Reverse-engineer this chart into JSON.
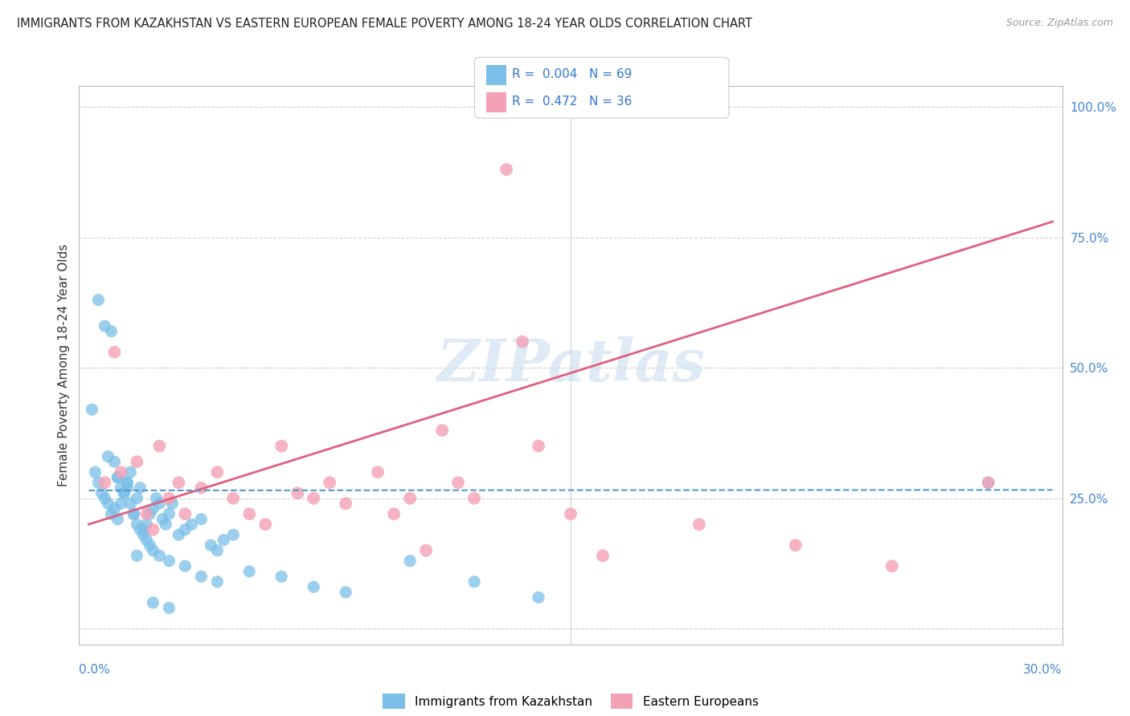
{
  "title": "IMMIGRANTS FROM KAZAKHSTAN VS EASTERN EUROPEAN FEMALE POVERTY AMONG 18-24 YEAR OLDS CORRELATION CHART",
  "source": "Source: ZipAtlas.com",
  "ylabel": "Female Poverty Among 18-24 Year Olds",
  "r_blue": 0.004,
  "n_blue": 69,
  "r_pink": 0.472,
  "n_pink": 36,
  "blue_color": "#7bbfe8",
  "pink_color": "#f4a0b5",
  "blue_line_color": "#5599cc",
  "pink_line_color": "#e06080",
  "watermark_color": "#c8dff0",
  "xlim": [
    0.0,
    0.3
  ],
  "ylim": [
    0.0,
    1.0
  ],
  "pink_line_y0": 0.2,
  "pink_line_y1": 0.78,
  "blue_line_y": 0.265,
  "blue_scatter_x": [
    0.003,
    0.005,
    0.007,
    0.008,
    0.009,
    0.01,
    0.011,
    0.012,
    0.013,
    0.014,
    0.015,
    0.016,
    0.017,
    0.018,
    0.019,
    0.02,
    0.021,
    0.022,
    0.023,
    0.024,
    0.025,
    0.026,
    0.028,
    0.03,
    0.032,
    0.035,
    0.038,
    0.04,
    0.042,
    0.045,
    0.002,
    0.003,
    0.004,
    0.005,
    0.006,
    0.007,
    0.008,
    0.009,
    0.01,
    0.011,
    0.012,
    0.013,
    0.014,
    0.015,
    0.016,
    0.017,
    0.018,
    0.019,
    0.02,
    0.022,
    0.025,
    0.03,
    0.035,
    0.04,
    0.05,
    0.06,
    0.07,
    0.08,
    0.1,
    0.12,
    0.14,
    0.006,
    0.009,
    0.012,
    0.015,
    0.02,
    0.025,
    0.28,
    0.001
  ],
  "blue_scatter_y": [
    0.63,
    0.58,
    0.57,
    0.23,
    0.21,
    0.24,
    0.26,
    0.28,
    0.3,
    0.22,
    0.25,
    0.27,
    0.19,
    0.2,
    0.22,
    0.23,
    0.25,
    0.24,
    0.21,
    0.2,
    0.22,
    0.24,
    0.18,
    0.19,
    0.2,
    0.21,
    0.16,
    0.15,
    0.17,
    0.18,
    0.3,
    0.28,
    0.26,
    0.25,
    0.24,
    0.22,
    0.32,
    0.29,
    0.27,
    0.26,
    0.28,
    0.24,
    0.22,
    0.2,
    0.19,
    0.18,
    0.17,
    0.16,
    0.15,
    0.14,
    0.13,
    0.12,
    0.1,
    0.09,
    0.11,
    0.1,
    0.08,
    0.07,
    0.13,
    0.09,
    0.06,
    0.33,
    0.29,
    0.27,
    0.14,
    0.05,
    0.04,
    0.28,
    0.42
  ],
  "pink_scatter_x": [
    0.005,
    0.01,
    0.015,
    0.018,
    0.022,
    0.025,
    0.03,
    0.035,
    0.04,
    0.045,
    0.05,
    0.055,
    0.06,
    0.065,
    0.07,
    0.075,
    0.08,
    0.09,
    0.095,
    0.1,
    0.105,
    0.11,
    0.115,
    0.12,
    0.13,
    0.135,
    0.14,
    0.15,
    0.16,
    0.19,
    0.22,
    0.25,
    0.28,
    0.02,
    0.028,
    0.008
  ],
  "pink_scatter_y": [
    0.28,
    0.3,
    0.32,
    0.22,
    0.35,
    0.25,
    0.22,
    0.27,
    0.3,
    0.25,
    0.22,
    0.2,
    0.35,
    0.26,
    0.25,
    0.28,
    0.24,
    0.3,
    0.22,
    0.25,
    0.15,
    0.38,
    0.28,
    0.25,
    0.88,
    0.55,
    0.35,
    0.22,
    0.14,
    0.2,
    0.16,
    0.12,
    0.28,
    0.19,
    0.28,
    0.53
  ]
}
